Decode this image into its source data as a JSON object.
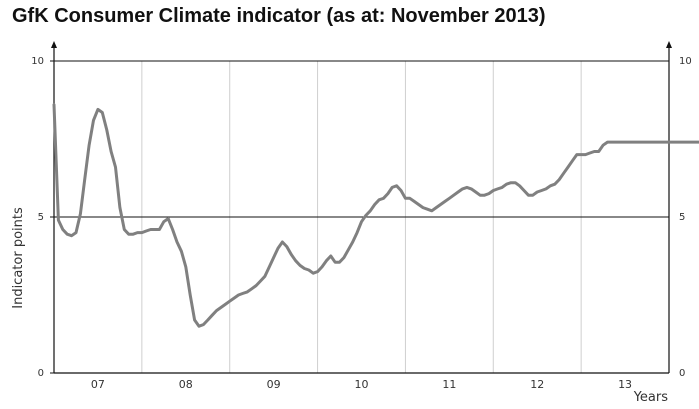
{
  "chart_data": {
    "type": "line",
    "title": "GfK Consumer Climate indicator (as at: November 2013)",
    "ylabel": "Indicator points",
    "xlabel": "Years",
    "ylim": [
      0,
      10
    ],
    "y_ticks": [
      "0",
      "5",
      "10"
    ],
    "x_ticks": [
      "07",
      "08",
      "09",
      "10",
      "11",
      "12",
      "13"
    ],
    "grid": "vertical year separators, horizontal line at 5",
    "series_color": "#808080",
    "series": [
      {
        "x": [
          2006.5,
          2006.55,
          2006.6,
          2006.65,
          2006.7,
          2006.75,
          2006.8,
          2006.85,
          2006.9,
          2006.95,
          2007.0,
          2007.05,
          2007.1,
          2007.15,
          2007.2,
          2007.25,
          2007.3,
          2007.35,
          2007.4,
          2007.45,
          2007.5,
          2007.55,
          2007.6,
          2007.7,
          2007.75,
          2007.8,
          2007.85,
          2007.9,
          2007.95,
          2008.0,
          2008.05,
          2008.1,
          2008.15,
          2008.2,
          2008.25,
          2008.3,
          2008.35,
          2008.4,
          2008.45,
          2008.5,
          2008.55,
          2008.6,
          2008.65,
          2008.7,
          2008.75,
          2008.8,
          2008.85,
          2008.9,
          2008.95,
          2009.0,
          2009.05,
          2009.1,
          2009.15,
          2009.2,
          2009.25,
          2009.3,
          2009.35,
          2009.4,
          2009.45,
          2009.5,
          2009.55,
          2009.6,
          2009.65,
          2009.7,
          2009.75,
          2009.8,
          2009.85,
          2009.9,
          2009.95,
          2010.0,
          2010.05,
          2010.1,
          2010.15,
          2010.2,
          2010.25,
          2010.3,
          2010.35,
          2010.4,
          2010.45,
          2010.5,
          2010.55,
          2010.6,
          2010.65,
          2010.7,
          2010.75,
          2010.8,
          2010.85,
          2010.9,
          2010.95,
          2011.0,
          2011.05,
          2011.1,
          2011.15,
          2011.2,
          2011.25,
          2011.3,
          2011.35,
          2011.4,
          2011.45,
          2011.5,
          2011.55,
          2011.6,
          2011.65,
          2011.7,
          2011.75,
          2011.8,
          2011.85,
          2011.9,
          2011.95,
          2012.0,
          2012.05,
          2012.1,
          2012.15,
          2012.2,
          2012.25,
          2012.3,
          2012.35,
          2012.4,
          2012.45,
          2012.5,
          2012.55,
          2012.6,
          2012.65,
          2012.7,
          2012.75,
          2012.8,
          2012.85,
          2012.9,
          2012.95,
          2013.0,
          2013.05,
          2013.1,
          2013.15,
          2013.2,
          2013.25,
          2013.3,
          2013.35,
          2013.4,
          2013.45,
          2013.5,
          2013.55,
          2013.6,
          2013.65,
          2013.7,
          2013.75,
          2013.8,
          2013.85
        ],
        "values": [
          8.6,
          4.9,
          4.6,
          4.45,
          4.4,
          4.5,
          5.1,
          6.2,
          7.3,
          8.1,
          8.45,
          8.35,
          7.8,
          7.1,
          6.6,
          5.3,
          4.6,
          4.45,
          4.45,
          4.5,
          4.5,
          4.55,
          4.6,
          4.6,
          4.85,
          4.95,
          4.6,
          4.2,
          3.9,
          3.4,
          2.5,
          1.7,
          1.5,
          1.55,
          1.7,
          1.85,
          2.0,
          2.1,
          2.2,
          2.3,
          2.4,
          2.5,
          2.55,
          2.6,
          2.7,
          2.8,
          2.95,
          3.1,
          3.4,
          3.7,
          4.0,
          4.2,
          4.05,
          3.8,
          3.6,
          3.45,
          3.35,
          3.3,
          3.2,
          3.25,
          3.4,
          3.6,
          3.75,
          3.55,
          3.55,
          3.7,
          3.95,
          4.2,
          4.5,
          4.85,
          5.05,
          5.2,
          5.4,
          5.55,
          5.6,
          5.75,
          5.95,
          6.0,
          5.85,
          5.6,
          5.6,
          5.5,
          5.4,
          5.3,
          5.25,
          5.2,
          5.3,
          5.4,
          5.5,
          5.6,
          5.7,
          5.8,
          5.9,
          5.95,
          5.9,
          5.8,
          5.7,
          5.7,
          5.75,
          5.85,
          5.9,
          5.95,
          6.05,
          6.1,
          6.1,
          6.0,
          5.85,
          5.7,
          5.7,
          5.8,
          5.85,
          5.9,
          6.0,
          6.05,
          6.2,
          6.4,
          6.6,
          6.8,
          7.0,
          7.0,
          7.0,
          7.05,
          7.1,
          7.1,
          7.3,
          7.4,
          7.4,
          7.4,
          7.4,
          7.4,
          7.4,
          7.4,
          7.4,
          7.4,
          7.4,
          7.4,
          7.4,
          7.4,
          7.4,
          7.4,
          7.4,
          7.4,
          7.4,
          7.4,
          7.4,
          7.4,
          7.4
        ]
      }
    ]
  }
}
